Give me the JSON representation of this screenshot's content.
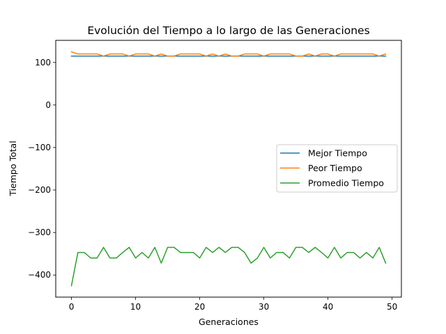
{
  "chart_data": {
    "type": "line",
    "title": "Evolución del Tiempo a lo largo de las Generaciones",
    "xlabel": "Generaciones",
    "ylabel": "Tiempo Total",
    "xlim": [
      -2.45,
      51.45
    ],
    "ylim": [
      -452,
      152
    ],
    "xticks": [
      0,
      10,
      20,
      30,
      40,
      50
    ],
    "yticks": [
      100,
      0,
      -100,
      -200,
      -300,
      -400
    ],
    "xtick_labels": [
      "0",
      "10",
      "20",
      "30",
      "40",
      "50"
    ],
    "ytick_labels": [
      "100",
      "0",
      "−100",
      "−200",
      "−300",
      "−400"
    ],
    "legend_position": "center-right",
    "grid": false,
    "x": [
      0,
      1,
      2,
      3,
      4,
      5,
      6,
      7,
      8,
      9,
      10,
      11,
      12,
      13,
      14,
      15,
      16,
      17,
      18,
      19,
      20,
      21,
      22,
      23,
      24,
      25,
      26,
      27,
      28,
      29,
      30,
      31,
      32,
      33,
      34,
      35,
      36,
      37,
      38,
      39,
      40,
      41,
      42,
      43,
      44,
      45,
      46,
      47,
      48,
      49
    ],
    "series": [
      {
        "name": "Mejor Tiempo",
        "color": "#1f77b4",
        "values": [
          115,
          115,
          115,
          115,
          115,
          115,
          115,
          115,
          115,
          115,
          115,
          115,
          115,
          115,
          115,
          115,
          115,
          115,
          115,
          115,
          115,
          115,
          115,
          115,
          115,
          115,
          115,
          115,
          115,
          115,
          115,
          115,
          115,
          115,
          115,
          115,
          115,
          115,
          115,
          115,
          115,
          115,
          115,
          115,
          115,
          115,
          115,
          115,
          115,
          115
        ]
      },
      {
        "name": "Peor Tiempo",
        "color": "#ff7f0e",
        "values": [
          125,
          120,
          120,
          120,
          120,
          115,
          120,
          120,
          120,
          115,
          120,
          120,
          120,
          115,
          120,
          115,
          115,
          120,
          120,
          120,
          120,
          115,
          120,
          115,
          120,
          115,
          115,
          120,
          120,
          120,
          115,
          120,
          120,
          120,
          120,
          115,
          115,
          120,
          115,
          120,
          120,
          115,
          120,
          120,
          120,
          120,
          120,
          120,
          115,
          120
        ]
      },
      {
        "name": "Promedio Tiempo",
        "color": "#2ca02c",
        "values": [
          -425,
          -347,
          -347,
          -360,
          -360,
          -335,
          -360,
          -360,
          -347,
          -335,
          -360,
          -347,
          -360,
          -335,
          -372,
          -335,
          -335,
          -347,
          -347,
          -347,
          -360,
          -335,
          -347,
          -335,
          -347,
          -335,
          -335,
          -347,
          -372,
          -360,
          -335,
          -360,
          -347,
          -347,
          -360,
          -335,
          -335,
          -347,
          -335,
          -347,
          -360,
          -335,
          -360,
          -347,
          -347,
          -360,
          -347,
          -360,
          -335,
          -372
        ]
      }
    ]
  }
}
